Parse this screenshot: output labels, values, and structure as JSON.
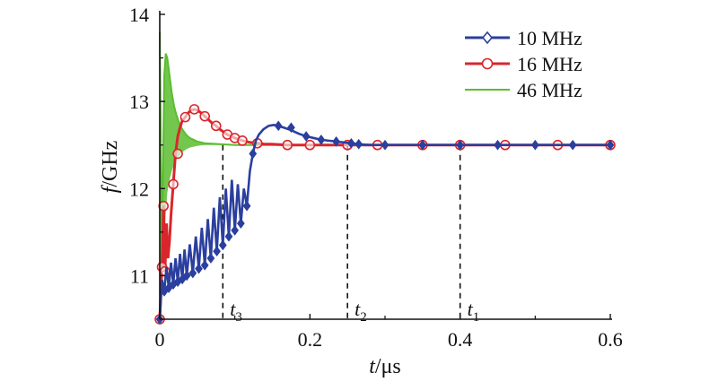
{
  "chart_data": {
    "type": "line",
    "xlabel_var": "t",
    "xlabel_unit": "/μs",
    "ylabel_var": "f",
    "ylabel_unit": "/GHz",
    "xlim": [
      0,
      0.6
    ],
    "ylim": [
      10.5,
      14
    ],
    "xticks": [
      0,
      0.2,
      0.4,
      0.6
    ],
    "xtick_labels": [
      "0",
      "0.2",
      "0.4",
      "0.6"
    ],
    "yticks": [
      11,
      12,
      13,
      14
    ],
    "ytick_labels": [
      "11",
      "12",
      "13",
      "14"
    ],
    "grid": false,
    "legend_position": "top-right",
    "steady_value": 12.5,
    "markers": [
      {
        "label": "t",
        "sub": "3",
        "x": 0.084
      },
      {
        "label": "t",
        "sub": "2",
        "x": 0.25
      },
      {
        "label": "t",
        "sub": "1",
        "x": 0.4
      }
    ],
    "series": [
      {
        "name": "10 MHz",
        "color": "#2b3f9e",
        "marker": "diamond",
        "x": [
          0.0,
          0.003,
          0.006,
          0.009,
          0.012,
          0.015,
          0.018,
          0.021,
          0.024,
          0.027,
          0.03,
          0.033,
          0.036,
          0.04,
          0.044,
          0.048,
          0.052,
          0.056,
          0.06,
          0.064,
          0.068,
          0.072,
          0.076,
          0.08,
          0.084,
          0.088,
          0.092,
          0.096,
          0.1,
          0.104,
          0.108,
          0.112,
          0.116,
          0.12,
          0.124,
          0.128,
          0.132,
          0.138,
          0.145,
          0.152,
          0.158,
          0.165,
          0.175,
          0.185,
          0.195,
          0.205,
          0.215,
          0.225,
          0.235,
          0.245,
          0.255,
          0.265,
          0.28,
          0.3,
          0.32,
          0.35,
          0.4,
          0.45,
          0.5,
          0.55,
          0.6
        ],
        "y": [
          10.5,
          10.95,
          10.82,
          11.1,
          10.86,
          11.15,
          10.9,
          11.2,
          10.93,
          11.25,
          10.96,
          11.3,
          11.0,
          11.36,
          11.03,
          11.45,
          11.08,
          11.55,
          11.12,
          11.65,
          11.2,
          11.78,
          11.28,
          11.9,
          11.35,
          12.0,
          11.45,
          12.1,
          11.52,
          12.05,
          11.6,
          12.0,
          11.8,
          12.2,
          12.4,
          12.55,
          12.62,
          12.68,
          12.72,
          12.73,
          12.72,
          12.7,
          12.67,
          12.63,
          12.6,
          12.58,
          12.56,
          12.55,
          12.54,
          12.53,
          12.52,
          12.51,
          12.5,
          12.5,
          12.5,
          12.5,
          12.5,
          12.5,
          12.5,
          12.5,
          12.5
        ],
        "marker_x": [
          0.0,
          0.006,
          0.012,
          0.018,
          0.024,
          0.03,
          0.036,
          0.044,
          0.052,
          0.06,
          0.068,
          0.076,
          0.084,
          0.092,
          0.1,
          0.108,
          0.116,
          0.124,
          0.158,
          0.175,
          0.195,
          0.215,
          0.235,
          0.255,
          0.265,
          0.3,
          0.35,
          0.4,
          0.45,
          0.5,
          0.55,
          0.6
        ],
        "marker_y": [
          10.5,
          10.82,
          10.86,
          10.9,
          10.93,
          10.96,
          11.0,
          11.03,
          11.08,
          11.12,
          11.2,
          11.28,
          11.35,
          11.45,
          11.52,
          11.6,
          11.8,
          12.4,
          12.72,
          12.7,
          12.6,
          12.56,
          12.54,
          12.52,
          12.51,
          12.5,
          12.5,
          12.5,
          12.5,
          12.5,
          12.5,
          12.5
        ]
      },
      {
        "name": "16 MHz",
        "color": "#d9262c",
        "marker": "circle",
        "x": [
          0.0,
          0.003,
          0.005,
          0.007,
          0.009,
          0.011,
          0.013,
          0.015,
          0.018,
          0.021,
          0.024,
          0.027,
          0.03,
          0.034,
          0.038,
          0.042,
          0.046,
          0.05,
          0.055,
          0.06,
          0.065,
          0.07,
          0.075,
          0.08,
          0.085,
          0.09,
          0.095,
          0.1,
          0.11,
          0.12,
          0.13,
          0.14,
          0.15,
          0.17,
          0.2,
          0.25,
          0.3,
          0.35,
          0.4,
          0.45,
          0.5,
          0.55,
          0.6
        ],
        "y": [
          10.5,
          11.1,
          11.8,
          11.05,
          11.6,
          11.2,
          11.4,
          11.7,
          12.05,
          12.4,
          12.6,
          12.7,
          12.78,
          12.82,
          12.87,
          12.9,
          12.91,
          12.9,
          12.87,
          12.83,
          12.79,
          12.75,
          12.72,
          12.68,
          12.65,
          12.62,
          12.6,
          12.58,
          12.55,
          12.53,
          12.52,
          12.51,
          12.51,
          12.5,
          12.5,
          12.5,
          12.5,
          12.5,
          12.5,
          12.5,
          12.5,
          12.5,
          12.5
        ],
        "marker_x": [
          0.0,
          0.003,
          0.005,
          0.007,
          0.018,
          0.024,
          0.034,
          0.046,
          0.06,
          0.075,
          0.09,
          0.1,
          0.11,
          0.13,
          0.17,
          0.2,
          0.25,
          0.29,
          0.35,
          0.4,
          0.46,
          0.53,
          0.6
        ],
        "marker_y": [
          10.5,
          11.1,
          11.8,
          11.05,
          12.05,
          12.4,
          12.82,
          12.91,
          12.83,
          12.72,
          12.62,
          12.58,
          12.55,
          12.52,
          12.5,
          12.5,
          12.5,
          12.5,
          12.5,
          12.5,
          12.5,
          12.5,
          12.5
        ]
      },
      {
        "name": "46 MHz",
        "color": "#5bbd2f",
        "marker": "none",
        "x": [
          0.0,
          0.003,
          0.006,
          0.008,
          0.01,
          0.013,
          0.016,
          0.019,
          0.022,
          0.026,
          0.03,
          0.035,
          0.04,
          0.05,
          0.06,
          0.08,
          0.1,
          0.15,
          0.2,
          0.3,
          0.4,
          0.5,
          0.6
        ],
        "y": [
          13.8,
          11.2,
          13.3,
          13.55,
          13.5,
          13.3,
          13.1,
          12.95,
          12.85,
          12.75,
          12.68,
          12.62,
          12.58,
          12.54,
          12.52,
          12.51,
          12.5,
          12.5,
          12.5,
          12.5,
          12.5,
          12.5,
          12.5
        ],
        "envelope_low": [
          10.5,
          11.0,
          11.4,
          11.7,
          11.95,
          12.1,
          12.2,
          12.28,
          12.33,
          12.38,
          12.42,
          12.45,
          12.47,
          12.49,
          12.5,
          12.5,
          12.5,
          12.5,
          12.5,
          12.5,
          12.5,
          12.5,
          12.5
        ]
      }
    ]
  }
}
